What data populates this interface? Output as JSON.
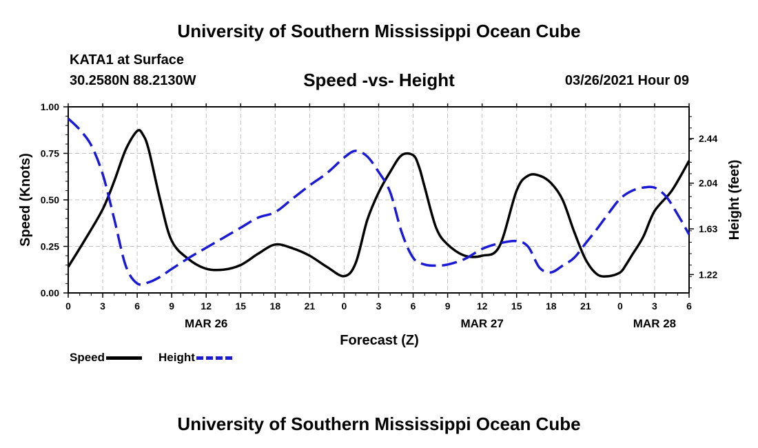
{
  "header": {
    "title": "University of Southern Mississippi Ocean Cube",
    "station": "KATA1 at Surface",
    "coords": "30.2580N 88.2130W",
    "chart_title": "Speed -vs- Height",
    "datetime": "03/26/2021 Hour 09"
  },
  "footer": {
    "title": "University of Southern Mississippi Ocean Cube"
  },
  "legend": {
    "speed": "Speed",
    "height": "Height"
  },
  "colors": {
    "speed": "#000000",
    "height": "#1a1ad6",
    "grid": "#c0c0c0"
  },
  "chart_data": {
    "type": "line",
    "title": "Speed -vs- Height",
    "xlabel": "Forecast (Z)",
    "ylabel": "Speed (Knots)",
    "y2label": "Height (feet)",
    "x_range": [
      0,
      54
    ],
    "x_tick_values": [
      0,
      3,
      6,
      9,
      12,
      15,
      18,
      21,
      24,
      27,
      30,
      33,
      36,
      39,
      42,
      45,
      48,
      51,
      54
    ],
    "x_tick_labels": [
      "0",
      "3",
      "6",
      "9",
      "12",
      "15",
      "18",
      "21",
      "0",
      "3",
      "6",
      "9",
      "12",
      "15",
      "18",
      "21",
      "0",
      "3",
      "6"
    ],
    "date_labels": [
      {
        "text": "MAR 26",
        "x": 12
      },
      {
        "text": "MAR 27",
        "x": 36
      },
      {
        "text": "MAR 28",
        "x": 51
      }
    ],
    "ylim": [
      0,
      1
    ],
    "y_ticks": [
      "0.00",
      "0.25",
      "0.50",
      "0.75",
      "1.00"
    ],
    "y_tick_values": [
      0,
      0.25,
      0.5,
      0.75,
      1.0
    ],
    "y2lim": [
      1.055,
      2.725
    ],
    "y2_ticks": [
      "1.22",
      "1.63",
      "2.04",
      "2.44"
    ],
    "y2_tick_values": [
      1.22,
      1.63,
      2.04,
      2.44
    ],
    "series": [
      {
        "name": "Speed",
        "axis": "left",
        "style": "solid",
        "x": [
          0,
          1.5,
          3,
          4,
          5,
          6,
          6.5,
          7,
          8,
          9,
          10.5,
          12,
          13.5,
          15,
          16.5,
          18,
          19.5,
          21,
          22.5,
          24,
          25,
          26,
          27,
          28,
          29,
          30,
          30.5,
          31,
          32,
          33,
          34.5,
          36,
          37.5,
          39,
          40,
          41,
          42,
          43,
          44,
          45,
          46,
          47,
          48,
          48.5,
          49,
          50,
          51,
          52.5,
          54
        ],
        "values": [
          0.14,
          0.29,
          0.45,
          0.6,
          0.77,
          0.87,
          0.85,
          0.77,
          0.5,
          0.28,
          0.18,
          0.13,
          0.125,
          0.15,
          0.21,
          0.26,
          0.24,
          0.2,
          0.14,
          0.09,
          0.16,
          0.39,
          0.54,
          0.65,
          0.74,
          0.74,
          0.68,
          0.57,
          0.35,
          0.26,
          0.2,
          0.2,
          0.25,
          0.55,
          0.63,
          0.63,
          0.59,
          0.5,
          0.33,
          0.18,
          0.1,
          0.09,
          0.11,
          0.15,
          0.2,
          0.3,
          0.44,
          0.55,
          0.71
        ]
      },
      {
        "name": "Height",
        "axis": "right",
        "style": "dashed",
        "x": [
          0,
          1,
          2,
          3,
          4,
          5,
          6,
          7,
          8,
          9,
          10.5,
          12,
          13.5,
          15,
          16.5,
          18,
          19.5,
          21,
          22.5,
          24,
          25,
          26,
          27,
          28,
          29,
          30,
          31,
          32,
          33,
          34.5,
          36,
          37.5,
          39,
          40,
          41,
          42,
          43,
          44,
          45,
          46,
          47,
          48,
          49,
          50,
          51,
          52,
          53,
          54
        ],
        "values": [
          2.62,
          2.52,
          2.38,
          2.12,
          1.72,
          1.3,
          1.14,
          1.15,
          1.2,
          1.27,
          1.37,
          1.46,
          1.55,
          1.64,
          1.73,
          1.78,
          1.9,
          2.02,
          2.13,
          2.27,
          2.33,
          2.28,
          2.14,
          1.96,
          1.6,
          1.37,
          1.31,
          1.3,
          1.31,
          1.36,
          1.45,
          1.5,
          1.52,
          1.47,
          1.28,
          1.24,
          1.3,
          1.37,
          1.5,
          1.63,
          1.77,
          1.9,
          1.97,
          2.0,
          2.0,
          1.92,
          1.76,
          1.58
        ]
      }
    ]
  }
}
